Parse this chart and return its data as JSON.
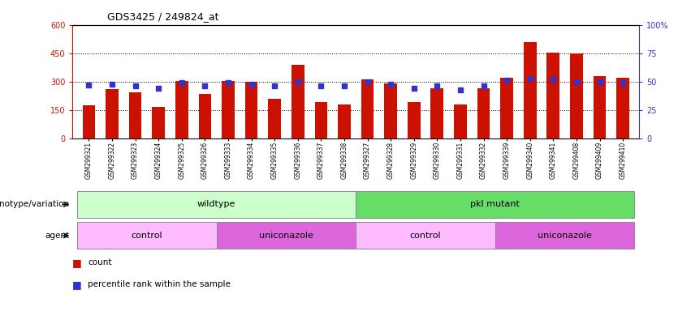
{
  "title": "GDS3425 / 249824_at",
  "samples": [
    "GSM299321",
    "GSM299322",
    "GSM299323",
    "GSM299324",
    "GSM299325",
    "GSM299326",
    "GSM299333",
    "GSM299334",
    "GSM299335",
    "GSM299336",
    "GSM299337",
    "GSM299338",
    "GSM299327",
    "GSM299328",
    "GSM299329",
    "GSM299330",
    "GSM299331",
    "GSM299332",
    "GSM299339",
    "GSM299340",
    "GSM299341",
    "GSM299408",
    "GSM299409",
    "GSM299410"
  ],
  "counts": [
    175,
    260,
    245,
    165,
    305,
    235,
    305,
    300,
    210,
    390,
    190,
    180,
    310,
    290,
    190,
    265,
    180,
    265,
    320,
    510,
    455,
    450,
    330,
    320
  ],
  "percentiles": [
    47,
    48,
    46,
    44,
    49,
    46,
    49,
    48,
    46,
    50,
    46,
    46,
    50,
    48,
    44,
    46,
    43,
    46,
    51,
    53,
    52,
    50,
    50,
    49
  ],
  "bar_color": "#cc1100",
  "square_color": "#3333cc",
  "ylim_left": [
    0,
    600
  ],
  "ylim_right": [
    0,
    100
  ],
  "yticks_left": [
    0,
    150,
    300,
    450,
    600
  ],
  "yticks_right": [
    0,
    25,
    50,
    75,
    100
  ],
  "yticklabels_right": [
    "0",
    "25",
    "50",
    "75",
    "100%"
  ],
  "grid_values": [
    150,
    300,
    450
  ],
  "background_color": "#ffffff",
  "genotype_groups": [
    {
      "label": "wildtype",
      "start": 0,
      "end": 12,
      "color": "#ccffcc"
    },
    {
      "label": "pkl mutant",
      "start": 12,
      "end": 24,
      "color": "#66dd66"
    }
  ],
  "agent_groups": [
    {
      "label": "control",
      "start": 0,
      "end": 6,
      "color": "#ffbbff"
    },
    {
      "label": "uniconazole",
      "start": 6,
      "end": 12,
      "color": "#dd66dd"
    },
    {
      "label": "control",
      "start": 12,
      "end": 18,
      "color": "#ffbbff"
    },
    {
      "label": "uniconazole",
      "start": 18,
      "end": 24,
      "color": "#dd66dd"
    }
  ],
  "legend_count_label": "count",
  "legend_pct_label": "percentile rank within the sample",
  "bar_width": 0.55
}
